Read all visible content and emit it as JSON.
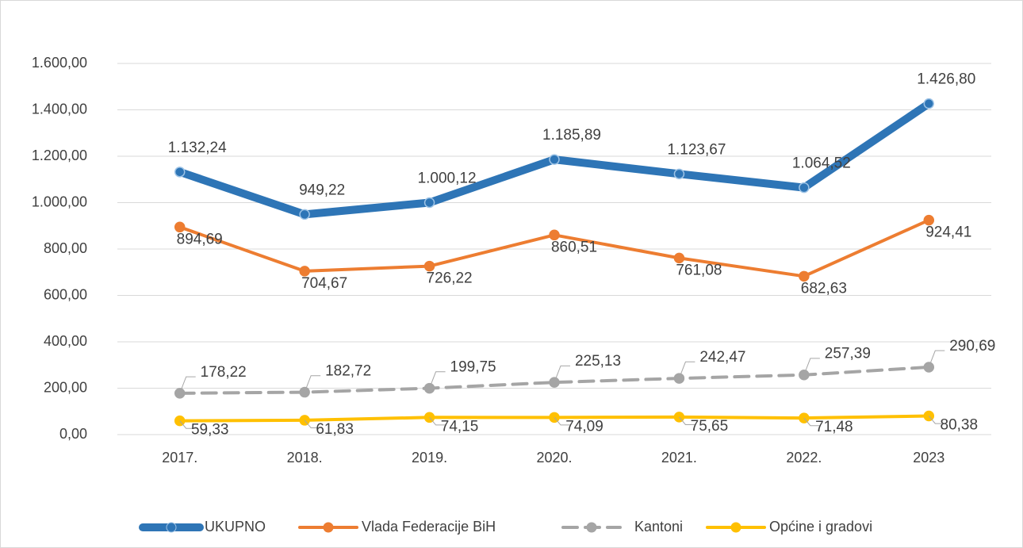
{
  "chart_data": {
    "type": "line",
    "categories": [
      "2017.",
      "2018.",
      "2019.",
      "2020.",
      "2021.",
      "2022.",
      "2023"
    ],
    "series": [
      {
        "name": "UKUPNO",
        "color": "#2e75b6",
        "values": [
          1132.24,
          949.22,
          1000.12,
          1185.89,
          1123.67,
          1064.52,
          1426.8
        ],
        "value_labels": [
          "1.132,24",
          "949,22",
          "1.000,12",
          "1.185,89",
          "1.123,67",
          "1.064,52",
          "1.426,80"
        ]
      },
      {
        "name": "Vlada Federacije BiH",
        "color": "#ed7d31",
        "values": [
          894.69,
          704.67,
          726.22,
          860.51,
          761.08,
          682.63,
          924.41
        ],
        "value_labels": [
          "894,69",
          "704,67",
          "726,22",
          "860,51",
          "761,08",
          "682,63",
          "924,41"
        ]
      },
      {
        "name": "Kantoni",
        "color": "#a5a5a5",
        "style": "dashed",
        "values": [
          178.22,
          182.72,
          199.75,
          225.13,
          242.47,
          257.39,
          290.69
        ],
        "value_labels": [
          "178,22",
          "182,72",
          "199,75",
          "225,13",
          "242,47",
          "257,39",
          "290,69"
        ]
      },
      {
        "name": "Općine i gradovi",
        "color": "#ffc000",
        "values": [
          59.33,
          61.83,
          74.15,
          74.09,
          75.65,
          71.48,
          80.38
        ],
        "value_labels": [
          "59,33",
          "61,83",
          "74,15",
          "74,09",
          "75,65",
          "71,48",
          "80,38"
        ]
      }
    ],
    "ylim": [
      0,
      1600
    ],
    "yticks": [
      {
        "value": 0,
        "label": "0,00"
      },
      {
        "value": 200,
        "label": "200,00"
      },
      {
        "value": 400,
        "label": "400,00"
      },
      {
        "value": 600,
        "label": "600,00"
      },
      {
        "value": 800,
        "label": "800,00"
      },
      {
        "value": 1000,
        "label": "1.000,00"
      },
      {
        "value": 1200,
        "label": "1.200,00"
      },
      {
        "value": 1400,
        "label": "1.400,00"
      },
      {
        "value": 1600,
        "label": "1.600,00"
      }
    ],
    "grid": true,
    "legend": "bottom"
  }
}
